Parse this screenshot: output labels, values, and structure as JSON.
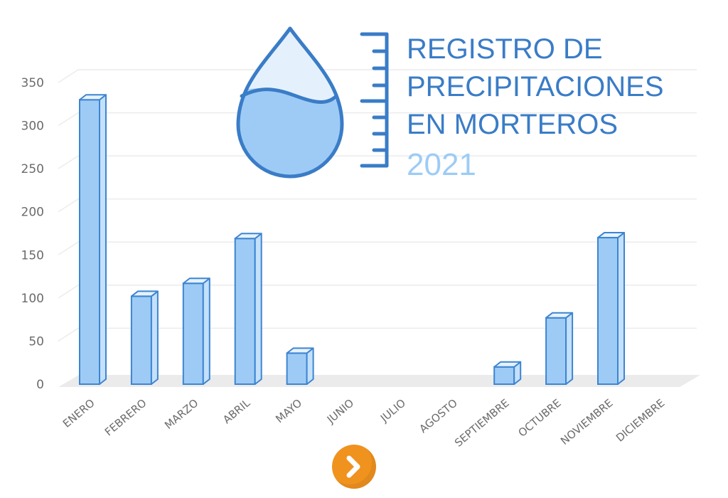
{
  "chart_data": {
    "type": "bar",
    "title": [
      "REGISTRO DE",
      "PRECIPITACIONES",
      "EN MORTEROS"
    ],
    "subtitle": "2021",
    "categories": [
      "ENERO",
      "FEBRERO",
      "MARZO",
      "ABRIL",
      "MAYO",
      "JUNIO",
      "JULIO",
      "AGOSTO",
      "SEPTIEMBRE",
      "OCTUBRE",
      "NOVIEMBRE",
      "DICIEMBRE"
    ],
    "values": [
      330,
      102,
      117,
      169,
      36,
      0,
      0,
      0,
      20,
      77,
      170,
      0
    ],
    "yticks": [
      "0",
      "50",
      "100",
      "150",
      "200",
      "250",
      "300",
      "350"
    ],
    "ylim": [
      0,
      350
    ],
    "grid": true,
    "legend": "none",
    "colors": {
      "bar_fill": "#9ecbf5",
      "bar_edge": "#3d85d1",
      "title": "#3a7cc7",
      "year": "#9dccf5",
      "grid": "#ececec"
    }
  },
  "controls": {
    "next_icon": "chevron-right-icon",
    "next_color": "#f0921e"
  }
}
